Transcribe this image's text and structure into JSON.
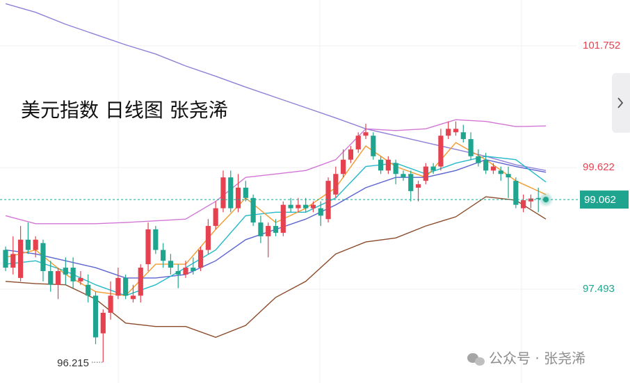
{
  "chart_data": {
    "type": "candlestick",
    "title": "美元指数 日线图 张尧浠",
    "watermark": "公众号 · 张尧浠",
    "ylim": [
      95.851,
      102.555
    ],
    "yticks": [
      101.752,
      99.622,
      97.493
    ],
    "up_color": "#e5414f",
    "down_color": "#1fa58f",
    "grid": true,
    "open": [
      98.18,
      97.87,
      97.69,
      98.36,
      98.18,
      98.3,
      97.81,
      97.57,
      97.87,
      97.87,
      97.63,
      97.57,
      97.38,
      96.72,
      97.08,
      97.38,
      97.69,
      97.32,
      97.38,
      97.93,
      98.54,
      98.18,
      97.99,
      97.81,
      97.75,
      97.87,
      97.87,
      98.18,
      98.6,
      98.91,
      99.45,
      98.91,
      99.27,
      99.09,
      98.66,
      98.42,
      98.6,
      98.48,
      98.97,
      98.91,
      98.97,
      98.91,
      98.91,
      98.72,
      99.15,
      99.51,
      99.76,
      99.94,
      100.18,
      100.18,
      99.76,
      99.57,
      99.7,
      99.51,
      99.51,
      99.27,
      99.39,
      99.64,
      99.64,
      100.18,
      100.24,
      100.24,
      100.12,
      99.82,
      99.76,
      99.57,
      99.57,
      99.51,
      99.39,
      98.91,
      99.03,
      99.09,
      99.07
    ],
    "high": [
      98.24,
      98.42,
      98.6,
      98.66,
      98.42,
      98.36,
      97.99,
      97.87,
      98.05,
      98.05,
      97.81,
      97.75,
      97.45,
      97.14,
      97.63,
      97.87,
      97.75,
      97.57,
      97.93,
      98.66,
      98.6,
      98.3,
      98.11,
      97.93,
      97.99,
      98.05,
      98.24,
      98.72,
      99.03,
      99.57,
      99.57,
      99.51,
      99.39,
      99.15,
      98.78,
      98.66,
      98.72,
      99.03,
      99.09,
      99.09,
      99.09,
      99.03,
      99.03,
      99.45,
      99.64,
      99.94,
      100.0,
      100.24,
      100.39,
      100.24,
      99.82,
      99.82,
      99.76,
      99.57,
      99.57,
      99.39,
      99.7,
      99.7,
      100.3,
      100.43,
      100.43,
      100.37,
      100.24,
      99.94,
      99.88,
      99.7,
      99.64,
      99.64,
      99.45,
      99.15,
      99.15,
      99.27,
      99.1
    ],
    "low": [
      97.81,
      97.75,
      97.63,
      98.11,
      98.05,
      97.63,
      97.45,
      97.32,
      97.57,
      97.51,
      97.57,
      97.26,
      96.53,
      96.215,
      96.96,
      97.32,
      97.32,
      97.26,
      97.26,
      97.81,
      98.11,
      97.87,
      97.75,
      97.51,
      97.69,
      97.75,
      97.81,
      98.11,
      98.54,
      98.84,
      98.84,
      98.84,
      99.03,
      98.6,
      98.3,
      98.05,
      98.42,
      98.42,
      98.84,
      98.84,
      98.84,
      98.84,
      98.6,
      98.66,
      99.09,
      99.45,
      99.7,
      99.88,
      100.12,
      99.76,
      99.51,
      99.51,
      99.33,
      99.39,
      99.03,
      99.03,
      99.33,
      99.51,
      99.57,
      100.12,
      100.18,
      100.06,
      99.76,
      99.64,
      99.51,
      99.51,
      99.39,
      99.09,
      98.91,
      98.84,
      98.91,
      98.84,
      99.03
    ],
    "close": [
      97.87,
      98.11,
      98.36,
      98.18,
      98.36,
      97.81,
      97.57,
      97.81,
      97.75,
      97.63,
      97.69,
      97.38,
      96.65,
      97.08,
      97.38,
      97.69,
      97.38,
      97.38,
      97.87,
      98.54,
      98.18,
      97.99,
      97.87,
      97.75,
      97.87,
      97.81,
      98.18,
      98.6,
      98.91,
      99.45,
      98.91,
      99.27,
      99.09,
      98.66,
      98.42,
      98.6,
      98.48,
      98.97,
      98.91,
      98.97,
      98.91,
      98.97,
      98.78,
      99.39,
      99.51,
      99.76,
      99.94,
      100.18,
      100.24,
      99.82,
      99.57,
      99.76,
      99.51,
      99.45,
      99.21,
      99.33,
      99.64,
      99.57,
      100.18,
      100.3,
      100.3,
      100.12,
      99.82,
      99.7,
      99.57,
      99.64,
      99.51,
      99.45,
      98.97,
      99.05,
      99.08,
      99.07,
      99.062
    ],
    "overlay": {
      "x": [
        0,
        4,
        8,
        12,
        16,
        20,
        24,
        28,
        32,
        36,
        40,
        44,
        48,
        52,
        56,
        60,
        64,
        68,
        72
      ],
      "series": [
        {
          "color": "#8f7fd8",
          "values": [
            102.49,
            102.34,
            102.13,
            101.95,
            101.77,
            101.61,
            101.4,
            101.22,
            101.03,
            100.85,
            100.67,
            100.49,
            100.3,
            100.18,
            100.06,
            99.94,
            99.82,
            99.67,
            99.57
          ]
        },
        {
          "color": "#d276d6",
          "values": [
            98.78,
            98.64,
            98.64,
            98.64,
            98.66,
            98.69,
            98.72,
            99.03,
            99.45,
            99.51,
            99.57,
            99.76,
            100.3,
            100.27,
            100.3,
            100.46,
            100.43,
            100.34,
            100.35
          ]
        },
        {
          "color": "#8b4a2a",
          "values": [
            97.63,
            97.59,
            97.57,
            97.32,
            96.9,
            96.84,
            96.84,
            96.65,
            96.86,
            97.35,
            97.63,
            98.11,
            98.32,
            98.39,
            98.6,
            98.76,
            99.11,
            99.05,
            98.72
          ]
        },
        {
          "color": "#5a63d0",
          "values": [
            98.18,
            98.11,
            97.99,
            97.87,
            97.69,
            97.69,
            97.75,
            97.99,
            98.36,
            98.54,
            98.72,
            98.97,
            99.27,
            99.45,
            99.45,
            99.57,
            99.76,
            99.64,
            99.54
          ]
        },
        {
          "color": "#22b8c8",
          "values": [
            97.93,
            97.99,
            97.81,
            97.57,
            97.38,
            97.57,
            97.87,
            98.18,
            98.78,
            98.84,
            98.84,
            99.09,
            99.64,
            99.7,
            99.51,
            99.7,
            99.82,
            99.76,
            99.37
          ]
        },
        {
          "color": "#f39a2c",
          "values": [
            98.05,
            98.18,
            97.75,
            97.45,
            97.38,
            97.93,
            97.93,
            98.54,
            99.09,
            98.66,
            98.91,
            99.27,
            100.0,
            99.64,
            99.45,
            100.06,
            99.76,
            99.39,
            99.15
          ]
        }
      ]
    }
  }
}
